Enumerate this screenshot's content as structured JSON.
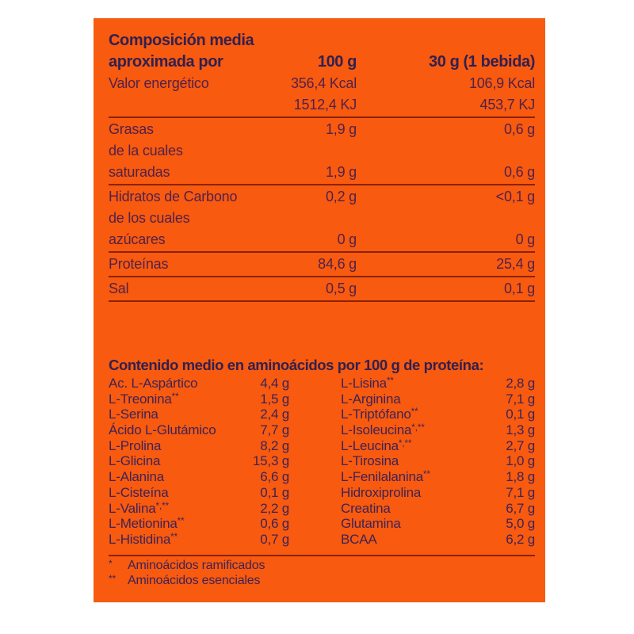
{
  "page": {
    "background_color": "#ffffff"
  },
  "label": {
    "background_color": "#f85a0f",
    "rule_color": "#8a2305",
    "heading_color": "#32204f",
    "body_text_color": "#52214a",
    "amino_text_color": "#3e2356",
    "composition": {
      "title_line1": "Composición media",
      "title_line2": "aproximada por",
      "col1_header": "100 g",
      "col2_header": "30 g (1 bebida)",
      "rows": [
        {
          "label": "Valor energético",
          "per100": "356,4 Kcal",
          "per30": "106,9 Kcal"
        },
        {
          "label": "",
          "per100": "1512,4 KJ",
          "per30": "453,7 KJ"
        },
        {
          "label": "Grasas",
          "per100": "1,9 g",
          "per30": "0,6 g"
        },
        {
          "label": "de la cuales",
          "per100": "",
          "per30": ""
        },
        {
          "label": "saturadas",
          "per100": "1,9 g",
          "per30": "0,6 g"
        },
        {
          "label": "Hidratos de Carbono",
          "per100": "0,2 g",
          "per30": "<0,1 g"
        },
        {
          "label": "de los cuales",
          "per100": "",
          "per30": ""
        },
        {
          "label": "azúcares",
          "per100": "0 g",
          "per30": "0 g"
        },
        {
          "label": "Proteínas",
          "per100": "84,6 g",
          "per30": "25,4 g"
        },
        {
          "label": "Sal",
          "per100": "0,5 g",
          "per30": "0,1 g"
        }
      ]
    },
    "aminoacids": {
      "title": "Contenido medio en aminoácidos por 100 g de proteína:",
      "left": [
        {
          "name": "Ac. L-Aspártico",
          "mark": "",
          "value": "4,4 g"
        },
        {
          "name": "L-Treonina",
          "mark": "**",
          "value": "1,5 g"
        },
        {
          "name": "L-Serina",
          "mark": "",
          "value": "2,4 g"
        },
        {
          "name": "Ácido L-Glutámico",
          "mark": "",
          "value": "7,7 g"
        },
        {
          "name": "L-Prolina",
          "mark": "",
          "value": "8,2 g"
        },
        {
          "name": "L-Glicina",
          "mark": "",
          "value": "15,3 g"
        },
        {
          "name": "L-Alanina",
          "mark": "",
          "value": "6,6 g"
        },
        {
          "name": "L-Cisteína",
          "mark": "",
          "value": "0,1 g"
        },
        {
          "name": "L-Valina",
          "mark": "*,**",
          "value": "2,2 g"
        },
        {
          "name": "L-Metionina",
          "mark": "**",
          "value": "0,6 g"
        },
        {
          "name": "L-Histidina",
          "mark": "**",
          "value": "0,7 g"
        }
      ],
      "right": [
        {
          "name": "L-Lisina",
          "mark": "**",
          "value": "2,8 g"
        },
        {
          "name": "L-Arginina",
          "mark": "",
          "value": "7,1 g"
        },
        {
          "name": "L-Triptófano",
          "mark": "**",
          "value": "0,1 g"
        },
        {
          "name": "L-Isoleucina",
          "mark": "*,**",
          "value": "1,3 g"
        },
        {
          "name": "L-Leucina",
          "mark": "*,**",
          "value": "2,7 g"
        },
        {
          "name": "L-Tirosina",
          "mark": "",
          "value": "1,0 g"
        },
        {
          "name": "L-Fenilalanina",
          "mark": "**",
          "value": "1,8 g"
        },
        {
          "name": "Hidroxiprolina",
          "mark": "",
          "value": "7,1 g"
        },
        {
          "name": "Creatina",
          "mark": "",
          "value": "6,7 g"
        },
        {
          "name": "Glutamina",
          "mark": "",
          "value": "5,0 g"
        },
        {
          "name": "BCAA",
          "mark": "",
          "value": "6,2 g"
        }
      ]
    },
    "footnotes": [
      {
        "mark": "*",
        "text": "Aminoácidos ramificados"
      },
      {
        "mark": "**",
        "text": "Aminoácidos esenciales"
      }
    ]
  }
}
